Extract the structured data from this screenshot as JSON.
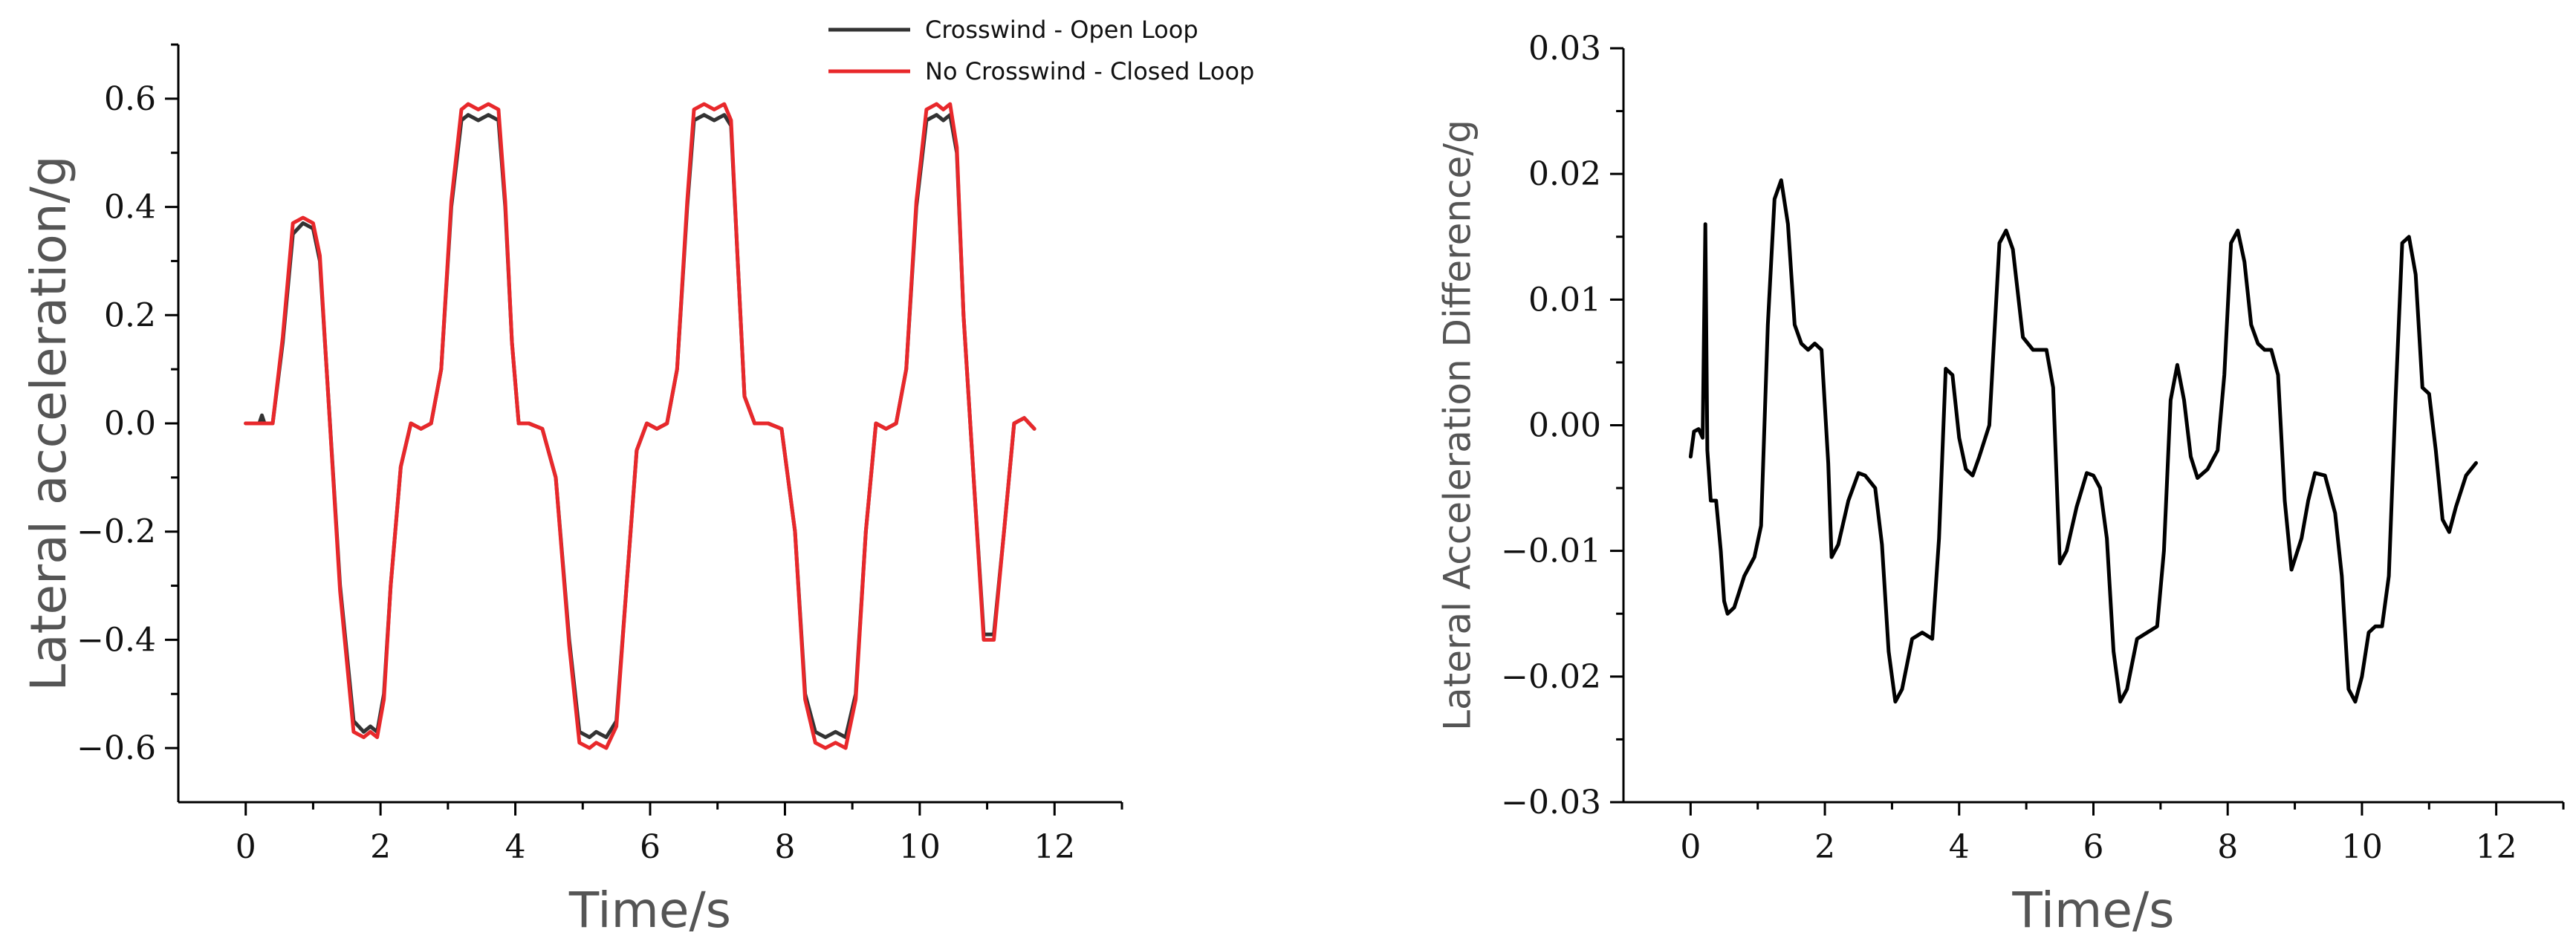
{
  "chart_data": [
    {
      "type": "line",
      "xlabel": "Time/s",
      "ylabel": "Lateral acceleration/g",
      "xlim": [
        -1,
        13
      ],
      "ylim": [
        -0.7,
        0.7
      ],
      "xticks": [
        0,
        2,
        4,
        6,
        8,
        10,
        12
      ],
      "yticks": [
        -0.6,
        -0.4,
        -0.2,
        0.0,
        0.2,
        0.4,
        0.6
      ],
      "xtick_labels": [
        "0",
        "2",
        "4",
        "6",
        "8",
        "10",
        "12"
      ],
      "ytick_labels": [
        "−0.6",
        "−0.4",
        "−0.2",
        "0.0",
        "0.2",
        "0.4",
        "0.6"
      ],
      "legend": "top-right",
      "grid": false,
      "series": [
        {
          "name": "Crosswind - Open Loop",
          "color": "#333333",
          "x": [
            0,
            0.2,
            0.24,
            0.28,
            0.4,
            0.55,
            0.7,
            0.85,
            1.0,
            1.1,
            1.2,
            1.4,
            1.6,
            1.75,
            1.85,
            1.95,
            2.05,
            2.15,
            2.3,
            2.45,
            2.6,
            2.75,
            2.9,
            3.05,
            3.2,
            3.3,
            3.45,
            3.6,
            3.75,
            3.85,
            3.95,
            4.05,
            4.2,
            4.4,
            4.6,
            4.8,
            4.95,
            5.1,
            5.2,
            5.35,
            5.5,
            5.65,
            5.8,
            5.95,
            6.1,
            6.25,
            6.4,
            6.55,
            6.65,
            6.8,
            6.95,
            7.1,
            7.2,
            7.3,
            7.4,
            7.55,
            7.75,
            7.95,
            8.15,
            8.3,
            8.45,
            8.6,
            8.75,
            8.9,
            9.05,
            9.2,
            9.35,
            9.5,
            9.65,
            9.8,
            9.95,
            10.1,
            10.25,
            10.35,
            10.45,
            10.55,
            10.65,
            10.8,
            10.95,
            11.1,
            11.25,
            11.4,
            11.55,
            11.7
          ],
          "y": [
            0.0,
            0.0,
            0.015,
            0.0,
            0.0,
            0.15,
            0.35,
            0.37,
            0.36,
            0.3,
            0.1,
            -0.3,
            -0.55,
            -0.57,
            -0.56,
            -0.57,
            -0.5,
            -0.3,
            -0.08,
            0.0,
            -0.01,
            0.0,
            0.1,
            0.4,
            0.56,
            0.57,
            0.56,
            0.57,
            0.56,
            0.4,
            0.15,
            0.0,
            0.0,
            -0.01,
            -0.1,
            -0.4,
            -0.57,
            -0.58,
            -0.57,
            -0.58,
            -0.55,
            -0.3,
            -0.05,
            0.0,
            -0.01,
            0.0,
            0.1,
            0.4,
            0.56,
            0.57,
            0.56,
            0.57,
            0.55,
            0.3,
            0.05,
            0.0,
            0.0,
            -0.01,
            -0.2,
            -0.5,
            -0.57,
            -0.58,
            -0.57,
            -0.58,
            -0.5,
            -0.2,
            0.0,
            -0.01,
            0.0,
            0.1,
            0.4,
            0.56,
            0.57,
            0.56,
            0.57,
            0.5,
            0.2,
            -0.1,
            -0.39,
            -0.39,
            -0.2,
            0.0,
            0.01,
            -0.01
          ]
        },
        {
          "name": "No Crosswind - Closed Loop",
          "color": "#e8282b",
          "x": [
            0,
            0.2,
            0.24,
            0.28,
            0.4,
            0.55,
            0.7,
            0.85,
            1.0,
            1.1,
            1.2,
            1.4,
            1.6,
            1.75,
            1.85,
            1.95,
            2.05,
            2.15,
            2.3,
            2.45,
            2.6,
            2.75,
            2.9,
            3.05,
            3.2,
            3.3,
            3.45,
            3.6,
            3.75,
            3.85,
            3.95,
            4.05,
            4.2,
            4.4,
            4.6,
            4.8,
            4.95,
            5.1,
            5.2,
            5.35,
            5.5,
            5.65,
            5.8,
            5.95,
            6.1,
            6.25,
            6.4,
            6.55,
            6.65,
            6.8,
            6.95,
            7.1,
            7.2,
            7.3,
            7.4,
            7.55,
            7.75,
            7.95,
            8.15,
            8.3,
            8.45,
            8.6,
            8.75,
            8.9,
            9.05,
            9.2,
            9.35,
            9.5,
            9.65,
            9.8,
            9.95,
            10.1,
            10.25,
            10.35,
            10.45,
            10.55,
            10.65,
            10.8,
            10.95,
            11.1,
            11.25,
            11.4,
            11.55,
            11.7
          ],
          "y": [
            0.0,
            0.0,
            0.0,
            0.0,
            0.0,
            0.16,
            0.37,
            0.38,
            0.37,
            0.31,
            0.1,
            -0.31,
            -0.57,
            -0.58,
            -0.57,
            -0.58,
            -0.51,
            -0.3,
            -0.08,
            0.0,
            -0.01,
            0.0,
            0.1,
            0.41,
            0.58,
            0.59,
            0.58,
            0.59,
            0.58,
            0.41,
            0.15,
            0.0,
            0.0,
            -0.01,
            -0.1,
            -0.41,
            -0.59,
            -0.6,
            -0.59,
            -0.6,
            -0.56,
            -0.3,
            -0.05,
            0.0,
            -0.01,
            0.0,
            0.1,
            0.41,
            0.58,
            0.59,
            0.58,
            0.59,
            0.56,
            0.3,
            0.05,
            0.0,
            0.0,
            -0.01,
            -0.2,
            -0.51,
            -0.59,
            -0.6,
            -0.59,
            -0.6,
            -0.51,
            -0.2,
            0.0,
            -0.01,
            0.0,
            0.1,
            0.41,
            0.58,
            0.59,
            0.58,
            0.59,
            0.51,
            0.2,
            -0.1,
            -0.4,
            -0.4,
            -0.2,
            0.0,
            0.01,
            -0.01
          ]
        }
      ]
    },
    {
      "type": "line",
      "xlabel": "Time/s",
      "ylabel": "Lateral Acceleration Difference/g",
      "xlim": [
        -1,
        13
      ],
      "ylim": [
        -0.03,
        0.03
      ],
      "xticks": [
        0,
        2,
        4,
        6,
        8,
        10,
        12
      ],
      "yticks": [
        -0.03,
        -0.02,
        -0.01,
        0.0,
        0.01,
        0.02,
        0.03
      ],
      "xtick_labels": [
        "0",
        "2",
        "4",
        "6",
        "8",
        "10",
        "12"
      ],
      "ytick_labels": [
        "−0.03",
        "−0.02",
        "−0.01",
        "0.00",
        "0.01",
        "0.02",
        "0.03"
      ],
      "grid": false,
      "series": [
        {
          "color": "#000000",
          "x": [
            0,
            0.05,
            0.12,
            0.18,
            0.22,
            0.25,
            0.3,
            0.38,
            0.45,
            0.5,
            0.55,
            0.65,
            0.8,
            0.95,
            1.05,
            1.15,
            1.25,
            1.35,
            1.45,
            1.55,
            1.65,
            1.75,
            1.85,
            1.95,
            2.05,
            2.1,
            2.2,
            2.35,
            2.5,
            2.6,
            2.75,
            2.85,
            2.95,
            3.05,
            3.15,
            3.3,
            3.45,
            3.6,
            3.7,
            3.8,
            3.9,
            4.0,
            4.1,
            4.2,
            4.3,
            4.45,
            4.6,
            4.7,
            4.8,
            4.95,
            5.1,
            5.2,
            5.3,
            5.4,
            5.5,
            5.6,
            5.75,
            5.9,
            6.0,
            6.1,
            6.2,
            6.3,
            6.4,
            6.5,
            6.65,
            6.8,
            6.95,
            7.05,
            7.15,
            7.25,
            7.35,
            7.45,
            7.55,
            7.7,
            7.85,
            7.95,
            8.05,
            8.15,
            8.25,
            8.35,
            8.45,
            8.55,
            8.65,
            8.75,
            8.85,
            8.95,
            9.1,
            9.2,
            9.3,
            9.45,
            9.6,
            9.7,
            9.8,
            9.9,
            10.0,
            10.1,
            10.2,
            10.3,
            10.4,
            10.5,
            10.6,
            10.7,
            10.8,
            10.9,
            11.0,
            11.1,
            11.2,
            11.3,
            11.4,
            11.55,
            11.7
          ],
          "y": [
            -0.0025,
            -0.0005,
            -0.0003,
            -0.001,
            0.016,
            -0.002,
            -0.006,
            -0.006,
            -0.01,
            -0.014,
            -0.015,
            -0.0145,
            -0.012,
            -0.0105,
            -0.008,
            0.008,
            0.018,
            0.0195,
            0.016,
            0.008,
            0.0065,
            0.006,
            0.0065,
            0.006,
            -0.003,
            -0.0105,
            -0.0095,
            -0.006,
            -0.0038,
            -0.004,
            -0.005,
            -0.0095,
            -0.018,
            -0.022,
            -0.021,
            -0.017,
            -0.0165,
            -0.017,
            -0.009,
            0.0045,
            0.004,
            -0.001,
            -0.0035,
            -0.004,
            -0.0025,
            0.0,
            0.0145,
            0.0155,
            0.014,
            0.007,
            0.006,
            0.006,
            0.006,
            0.003,
            -0.011,
            -0.01,
            -0.0065,
            -0.0038,
            -0.004,
            -0.005,
            -0.009,
            -0.018,
            -0.022,
            -0.021,
            -0.017,
            -0.0165,
            -0.016,
            -0.01,
            0.002,
            0.0048,
            0.002,
            -0.0025,
            -0.0042,
            -0.0035,
            -0.002,
            0.004,
            0.0145,
            0.0155,
            0.013,
            0.008,
            0.0065,
            0.006,
            0.006,
            0.004,
            -0.006,
            -0.0115,
            -0.009,
            -0.006,
            -0.0038,
            -0.004,
            -0.007,
            -0.012,
            -0.021,
            -0.022,
            -0.02,
            -0.0165,
            -0.016,
            -0.016,
            -0.012,
            0.002,
            0.0145,
            0.015,
            0.012,
            0.003,
            0.0025,
            -0.002,
            -0.0075,
            -0.0085,
            -0.0065,
            -0.004,
            -0.003
          ]
        }
      ]
    }
  ]
}
